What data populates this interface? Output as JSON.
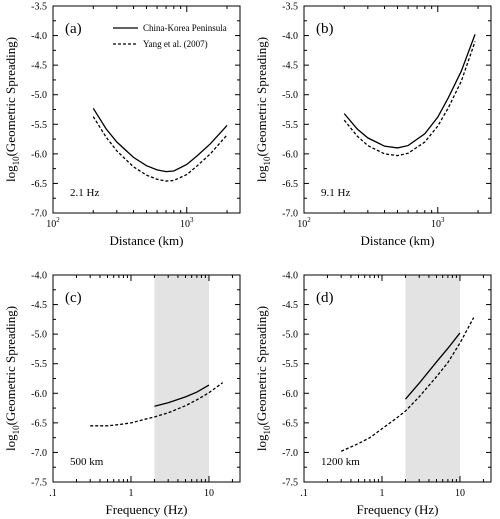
{
  "chart_data": [
    {
      "type": "line",
      "panel_label": "(a)",
      "annotation": "2.1 Hz",
      "xlabel": "Distance (km)",
      "ylabel_prefix": "log",
      "ylabel_sub": "10",
      "ylabel_main": "(Geometric Spreading)",
      "xscale": "log",
      "xlim": [
        100,
        2500
      ],
      "ylim": [
        -7.0,
        -3.5
      ],
      "xticks": [
        {
          "v": 100,
          "base": "10",
          "exp": "2"
        },
        {
          "v": 1000,
          "base": "10",
          "exp": "3"
        }
      ],
      "yticks": [
        "-3.5",
        "-4.0",
        "-4.5",
        "-5.0",
        "-5.5",
        "-6.0",
        "-6.5",
        "-7.0"
      ],
      "legend": {
        "position": "top-right",
        "entries": [
          "China-Korea Peninsula",
          "Yang et al. (2007)"
        ]
      },
      "series": [
        {
          "name": "China-Korea Peninsula",
          "style": "solid",
          "x": [
            200,
            250,
            300,
            400,
            500,
            600,
            700,
            800,
            1000,
            1200,
            1500,
            2000
          ],
          "y": [
            -5.23,
            -5.58,
            -5.8,
            -6.06,
            -6.2,
            -6.27,
            -6.3,
            -6.29,
            -6.18,
            -6.03,
            -5.83,
            -5.52
          ]
        },
        {
          "name": "Yang et al. (2007)",
          "style": "dashed",
          "x": [
            200,
            250,
            300,
            400,
            500,
            600,
            700,
            800,
            1000,
            1200,
            1500,
            2000
          ],
          "y": [
            -5.37,
            -5.72,
            -5.95,
            -6.22,
            -6.36,
            -6.43,
            -6.46,
            -6.45,
            -6.35,
            -6.2,
            -6.0,
            -5.68
          ]
        }
      ]
    },
    {
      "type": "line",
      "panel_label": "(b)",
      "annotation": "9.1 Hz",
      "xlabel": "Distance (km)",
      "ylabel_prefix": "log",
      "ylabel_sub": "10",
      "ylabel_main": "(Geometric Spreading)",
      "xscale": "log",
      "xlim": [
        100,
        2500
      ],
      "ylim": [
        -7.0,
        -3.5
      ],
      "xticks": [
        {
          "v": 100,
          "base": "10",
          "exp": "2"
        },
        {
          "v": 1000,
          "base": "10",
          "exp": "3"
        }
      ],
      "yticks": [
        "-3.5",
        "-4.0",
        "-4.5",
        "-5.0",
        "-5.5",
        "-6.0",
        "-6.5",
        "-7.0"
      ],
      "series": [
        {
          "name": "China-Korea Peninsula",
          "style": "solid",
          "x": [
            200,
            250,
            300,
            400,
            500,
            600,
            800,
            1000,
            1200,
            1500,
            1900
          ],
          "y": [
            -5.32,
            -5.58,
            -5.73,
            -5.87,
            -5.9,
            -5.86,
            -5.66,
            -5.38,
            -5.05,
            -4.6,
            -3.98
          ]
        },
        {
          "name": "Yang et al. (2007)",
          "style": "dashed",
          "x": [
            200,
            250,
            300,
            400,
            500,
            600,
            800,
            1000,
            1200,
            1500,
            1900
          ],
          "y": [
            -5.43,
            -5.7,
            -5.86,
            -6.0,
            -6.03,
            -5.99,
            -5.8,
            -5.53,
            -5.22,
            -4.77,
            -4.1
          ]
        }
      ]
    },
    {
      "type": "line",
      "panel_label": "(c)",
      "annotation": "500 km",
      "xlabel": "Frequency (Hz)",
      "ylabel_prefix": "log",
      "ylabel_sub": "10",
      "ylabel_main": "(Geometric Spreading)",
      "xscale": "log",
      "xlim": [
        0.1,
        25
      ],
      "ylim": [
        -7.5,
        -4.0
      ],
      "xticks": [
        {
          "v": 0.1,
          "label": ".1"
        },
        {
          "v": 1,
          "label": "1"
        },
        {
          "v": 10,
          "label": "10"
        }
      ],
      "yticks": [
        "-4.0",
        "-4.5",
        "-5.0",
        "-5.5",
        "-6.0",
        "-6.5",
        "-7.0",
        "-7.5"
      ],
      "shaded_band": [
        2,
        10
      ],
      "series": [
        {
          "name": "China-Korea Peninsula",
          "style": "solid",
          "x": [
            2,
            3,
            5,
            7,
            10
          ],
          "y": [
            -6.22,
            -6.16,
            -6.06,
            -5.98,
            -5.86
          ]
        },
        {
          "name": "Yang et al. (2007)",
          "style": "dashed",
          "x": [
            0.3,
            0.5,
            0.7,
            1,
            1.5,
            2,
            3,
            5,
            7,
            10,
            15
          ],
          "y": [
            -6.55,
            -6.55,
            -6.53,
            -6.5,
            -6.44,
            -6.4,
            -6.33,
            -6.21,
            -6.11,
            -5.99,
            -5.82
          ]
        }
      ]
    },
    {
      "type": "line",
      "panel_label": "(d)",
      "annotation": "1200 km",
      "xlabel": "Frequency (Hz)",
      "ylabel_prefix": "log",
      "ylabel_sub": "10",
      "ylabel_main": "(Geometric Spreading)",
      "xscale": "log",
      "xlim": [
        0.1,
        25
      ],
      "ylim": [
        -7.5,
        -4.0
      ],
      "xticks": [
        {
          "v": 0.1,
          "label": ".1"
        },
        {
          "v": 1,
          "label": "1"
        },
        {
          "v": 10,
          "label": "10"
        }
      ],
      "yticks": [
        "-4.0",
        "-4.5",
        "-5.0",
        "-5.5",
        "-6.0",
        "-6.5",
        "-7.0",
        "-7.5"
      ],
      "shaded_band": [
        2,
        10
      ],
      "series": [
        {
          "name": "China-Korea Peninsula",
          "style": "solid",
          "x": [
            2,
            3,
            5,
            7,
            10
          ],
          "y": [
            -6.1,
            -5.83,
            -5.47,
            -5.24,
            -4.98
          ]
        },
        {
          "name": "Yang et al. (2007)",
          "style": "dashed",
          "x": [
            0.3,
            0.5,
            0.7,
            1,
            1.5,
            2,
            3,
            5,
            7,
            10,
            15
          ],
          "y": [
            -6.98,
            -6.85,
            -6.75,
            -6.6,
            -6.43,
            -6.3,
            -6.06,
            -5.72,
            -5.48,
            -5.15,
            -4.72
          ]
        }
      ]
    }
  ],
  "colors": {
    "axis": "#000000",
    "line": "#000000",
    "band": "#e3e3e3",
    "background": "#ffffff"
  }
}
